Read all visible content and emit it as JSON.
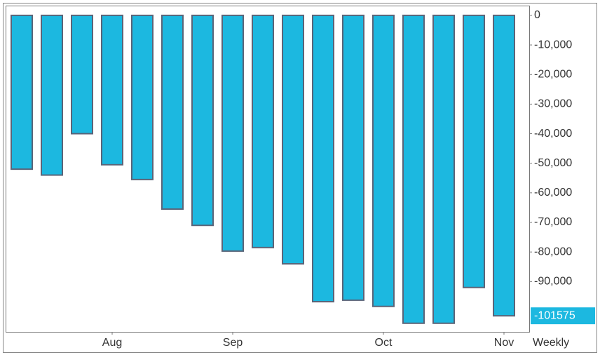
{
  "chart_data": {
    "type": "bar",
    "categories": [
      null,
      null,
      null,
      "Aug",
      null,
      null,
      null,
      "Sep",
      null,
      null,
      null,
      null,
      "Oct",
      null,
      null,
      null,
      "Nov"
    ],
    "values": [
      -52000,
      -54000,
      -40000,
      -50500,
      -55500,
      -65500,
      -71000,
      -79700,
      -78500,
      -84000,
      -96800,
      -96300,
      -98400,
      -104100,
      -104100,
      -92000,
      -101575
    ],
    "color": "#1cb8e0",
    "ylim": [
      -107000,
      3300
    ],
    "yticks": [
      0,
      {
        "value": -10000,
        "label": "-10,000"
      },
      {
        "value": -20000,
        "label": "-20,000"
      },
      {
        "value": -30000,
        "label": "-30,000"
      },
      {
        "value": -40000,
        "label": "-40,000"
      },
      {
        "value": -50000,
        "label": "-50,000"
      },
      {
        "value": -60000,
        "label": "-60,000"
      },
      {
        "value": -70000,
        "label": "-70,000"
      },
      {
        "value": -80000,
        "label": "-80,000"
      },
      {
        "value": -90000,
        "label": "-90,000"
      }
    ],
    "x_label": "Weekly"
  }
}
